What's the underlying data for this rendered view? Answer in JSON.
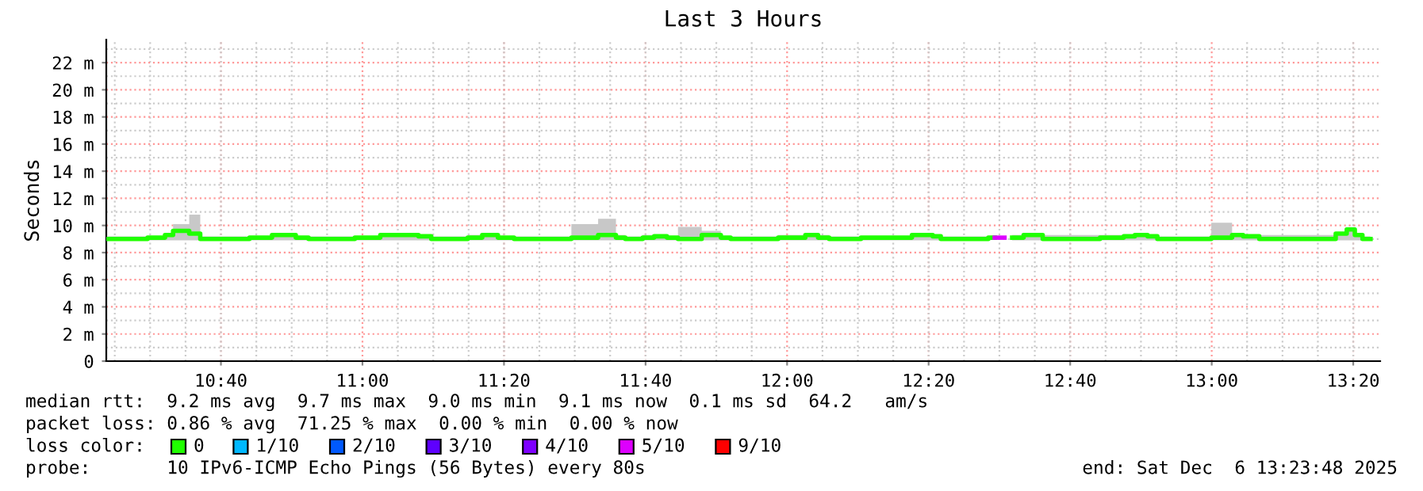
{
  "chart_data": {
    "type": "step",
    "title": "Last 3 Hours",
    "ylabel": "Seconds",
    "legend_title": "loss color:",
    "legend": "bottom",
    "grid": true,
    "xlim": [
      10.3967,
      13.3967
    ],
    "xticks": [
      {
        "value": 10.6667,
        "label": "10:40"
      },
      {
        "value": 11.0,
        "label": "11:00"
      },
      {
        "value": 11.3333,
        "label": "11:20"
      },
      {
        "value": 11.6667,
        "label": "11:40"
      },
      {
        "value": 12.0,
        "label": "12:00"
      },
      {
        "value": 12.3333,
        "label": "12:20"
      },
      {
        "value": 12.6667,
        "label": "12:40"
      },
      {
        "value": 13.0,
        "label": "13:00"
      },
      {
        "value": 13.3333,
        "label": "13:20"
      }
    ],
    "ylim": [
      0,
      23.7
    ],
    "yticks": [
      0,
      {
        "value": 2,
        "label": "2 m"
      },
      {
        "value": 4,
        "label": "4 m"
      },
      {
        "value": 6,
        "label": "6 m"
      },
      {
        "value": 8,
        "label": "8 m"
      },
      {
        "value": 10,
        "label": "10 m"
      },
      {
        "value": 12,
        "label": "12 m"
      },
      {
        "value": 14,
        "label": "14 m"
      },
      {
        "value": 16,
        "label": "16 m"
      },
      {
        "value": 18,
        "label": "18 m"
      },
      {
        "value": 20,
        "label": "20 m"
      },
      {
        "value": 22,
        "label": "22 m"
      }
    ],
    "series": [
      {
        "name": "0",
        "color": "#20ff00",
        "x": [
          10.4,
          10.494,
          10.535,
          10.554,
          10.592,
          10.618,
          10.734,
          10.787,
          10.843,
          10.873,
          10.982,
          11.042,
          11.132,
          11.162,
          11.248,
          11.282,
          11.319,
          11.357,
          11.492,
          11.555,
          11.597,
          11.619,
          11.66,
          11.687,
          11.717,
          11.743,
          11.799,
          11.844,
          11.867,
          11.979,
          12.043,
          12.073,
          12.099,
          12.174,
          12.294,
          12.343,
          12.362,
          12.474,
          12.489,
          12.512,
          12.53,
          12.557,
          12.602,
          12.737,
          12.793,
          12.819,
          12.849,
          12.872,
          12.999,
          13.048,
          13.074,
          13.112,
          13.292,
          13.318,
          13.337,
          13.355,
          13.374
        ],
        "values": [
          9.0,
          9.1,
          9.3,
          9.6,
          9.4,
          9.0,
          9.1,
          9.3,
          9.1,
          9.0,
          9.1,
          9.3,
          9.2,
          9.0,
          9.1,
          9.3,
          9.1,
          9.0,
          9.1,
          9.3,
          9.1,
          9.0,
          9.1,
          9.2,
          9.1,
          9.0,
          9.3,
          9.1,
          9.0,
          9.1,
          9.3,
          9.1,
          9.0,
          9.1,
          9.3,
          9.2,
          9.0,
          9.1,
          null,
          null,
          9.1,
          9.3,
          9.0,
          9.1,
          9.2,
          9.3,
          9.2,
          9.0,
          9.1,
          9.3,
          9.2,
          9.0,
          9.4,
          9.7,
          9.3,
          9.0,
          9.0
        ],
        "lower": [
          8.9,
          8.9,
          8.9,
          8.9,
          8.9,
          8.9,
          8.9,
          8.9,
          8.9,
          8.9,
          8.9,
          8.9,
          8.9,
          8.9,
          8.9,
          8.9,
          8.9,
          8.9,
          8.9,
          8.9,
          8.9,
          8.9,
          8.9,
          8.9,
          8.9,
          8.9,
          8.9,
          8.9,
          8.9,
          8.9,
          8.9,
          8.9,
          8.9,
          8.9,
          8.9,
          8.9,
          8.9,
          8.9,
          null,
          null,
          8.9,
          8.9,
          8.9,
          8.9,
          8.9,
          8.9,
          8.9,
          8.9,
          8.9,
          8.9,
          8.9,
          8.9,
          8.9,
          8.9,
          8.9,
          8.9,
          8.9
        ],
        "upper": [
          9.2,
          9.2,
          9.4,
          10.1,
          10.8,
          9.2,
          9.2,
          9.4,
          9.2,
          9.2,
          9.2,
          9.4,
          9.3,
          9.2,
          9.3,
          9.3,
          9.2,
          9.2,
          10.1,
          10.5,
          9.3,
          9.2,
          9.3,
          9.3,
          9.2,
          9.9,
          9.6,
          9.2,
          9.2,
          9.3,
          9.4,
          9.3,
          9.2,
          9.2,
          9.4,
          9.3,
          9.2,
          9.3,
          null,
          null,
          9.3,
          9.4,
          9.3,
          9.3,
          9.3,
          9.4,
          9.3,
          9.2,
          10.2,
          9.4,
          9.3,
          9.3,
          9.4,
          9.8,
          9.4,
          9.2,
          9.2
        ]
      },
      {
        "name": "1/10",
        "color": "#00b8ff"
      },
      {
        "name": "2/10",
        "color": "#0059ff"
      },
      {
        "name": "3/10",
        "color": "#5e00ff"
      },
      {
        "name": "4/10",
        "color": "#7e00ff"
      },
      {
        "name": "5/10",
        "color": "#dd00ff",
        "x": [
          12.489,
          12.512
        ],
        "values": [
          9.1,
          9.1
        ]
      },
      {
        "name": "9/10",
        "color": "#ff0000"
      }
    ],
    "annotations": [
      "median rtt:  9.2 ms avg  9.7 ms max  9.0 ms min  9.1 ms now  0.1 ms sd  64.2   am/s",
      "packet loss: 0.86 % avg  71.25 % max  0.00 % min  0.00 % now",
      "probe:       10 IPv6-ICMP Echo Pings (56 Bytes) every 80s",
      "end: Sat Dec  6 13:23:48 2025"
    ]
  }
}
